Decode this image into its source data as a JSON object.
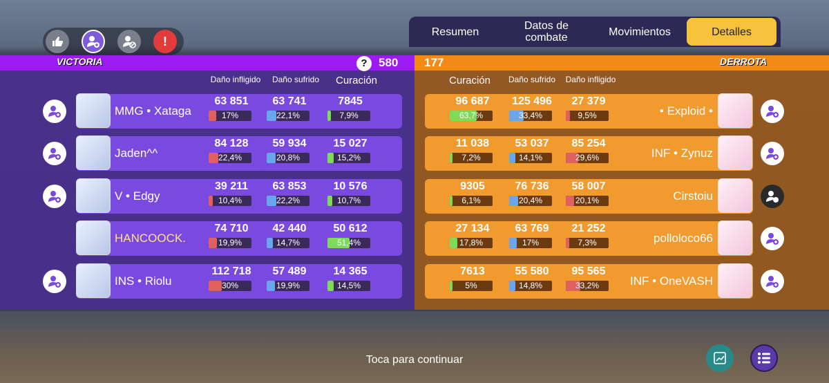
{
  "tabs": [
    "Resumen",
    "Datos de\ncombate",
    "Movimientos",
    "Detalles"
  ],
  "active_tab": "Detalles",
  "victory_label": "VICTORIA",
  "defeat_label": "DERROTA",
  "score_left": "580",
  "score_right": "177",
  "help_mark": "?",
  "left_headers": {
    "damage_dealt": "Daño infligido",
    "damage_taken": "Daño sufrido",
    "healing": "Curación"
  },
  "right_headers": {
    "healing": "Curación",
    "damage_taken": "Daño sufrido",
    "damage_dealt": "Daño infligido"
  },
  "left_team": [
    {
      "name": "MMG • Xataga",
      "dealt": "63 851",
      "dealt_pct": "17%",
      "dealt_frac": 0.17,
      "taken": "63 741",
      "taken_pct": "22,1%",
      "taken_frac": 0.221,
      "heal": "7845",
      "heal_pct": "7,9%",
      "heal_frac": 0.079,
      "add_friend": true
    },
    {
      "name": "Jaden^^",
      "dealt": "84 128",
      "dealt_pct": "22,4%",
      "dealt_frac": 0.224,
      "taken": "59 934",
      "taken_pct": "20,8%",
      "taken_frac": 0.208,
      "heal": "15 027",
      "heal_pct": "15,2%",
      "heal_frac": 0.152,
      "add_friend": true
    },
    {
      "name": "V • Edgy",
      "dealt": "39 211",
      "dealt_pct": "10,4%",
      "dealt_frac": 0.104,
      "taken": "63 853",
      "taken_pct": "22,2%",
      "taken_frac": 0.222,
      "heal": "10 576",
      "heal_pct": "10,7%",
      "heal_frac": 0.107,
      "add_friend": true
    },
    {
      "name": "HANCOOCK.",
      "dealt": "74 710",
      "dealt_pct": "19,9%",
      "dealt_frac": 0.199,
      "taken": "42 440",
      "taken_pct": "14,7%",
      "taken_frac": 0.147,
      "heal": "50 612",
      "heal_pct": "51,4%",
      "heal_frac": 0.514,
      "add_friend": false,
      "highlight": true
    },
    {
      "name": "INS • Riolu",
      "dealt": "112 718",
      "dealt_pct": "30%",
      "dealt_frac": 0.3,
      "taken": "57 489",
      "taken_pct": "19,9%",
      "taken_frac": 0.199,
      "heal": "14 365",
      "heal_pct": "14,5%",
      "heal_frac": 0.145,
      "add_friend": true
    }
  ],
  "right_team": [
    {
      "name": "• Exploid •",
      "heal": "96 687",
      "heal_pct": "63,7%",
      "heal_frac": 0.637,
      "taken": "125 496",
      "taken_pct": "33,4%",
      "taken_frac": 0.334,
      "dealt": "27 379",
      "dealt_pct": "9,5%",
      "dealt_frac": 0.095,
      "friend_style": "light"
    },
    {
      "name": "INF • Zynuz",
      "heal": "11 038",
      "heal_pct": "7,2%",
      "heal_frac": 0.072,
      "taken": "53 037",
      "taken_pct": "14,1%",
      "taken_frac": 0.141,
      "dealt": "85 254",
      "dealt_pct": "29,6%",
      "dealt_frac": 0.296,
      "friend_style": "light"
    },
    {
      "name": "Cirstoiu",
      "heal": "9305",
      "heal_pct": "6,1%",
      "heal_frac": 0.061,
      "taken": "76 736",
      "taken_pct": "20,4%",
      "taken_frac": 0.204,
      "dealt": "58 007",
      "dealt_pct": "20,1%",
      "dealt_frac": 0.201,
      "friend_style": "dark"
    },
    {
      "name": "polloloco66",
      "heal": "27 134",
      "heal_pct": "17,8%",
      "heal_frac": 0.178,
      "taken": "63 769",
      "taken_pct": "17%",
      "taken_frac": 0.17,
      "dealt": "21 252",
      "dealt_pct": "7,3%",
      "dealt_frac": 0.073,
      "friend_style": "light"
    },
    {
      "name": "INF • OneVASH",
      "heal": "7613",
      "heal_pct": "5%",
      "heal_frac": 0.05,
      "taken": "55 580",
      "taken_pct": "14,8%",
      "taken_frac": 0.148,
      "dealt": "95 565",
      "dealt_pct": "33,2%",
      "dealt_frac": 0.332,
      "friend_style": "light"
    }
  ],
  "continue_text": "Toca para continuar",
  "colors": {
    "victory": "#9b1bf0",
    "defeat": "#f48a16",
    "dealt": "#e06060",
    "taken": "#6aa6ee",
    "heal": "#7edb5a",
    "active_tab": "#f7c23b"
  },
  "icons": {
    "top": [
      "thumbs-up-icon",
      "add-friend-icon",
      "block-user-icon",
      "report-icon"
    ],
    "bottom": [
      "stats-chart-icon",
      "menu-list-icon"
    ]
  }
}
